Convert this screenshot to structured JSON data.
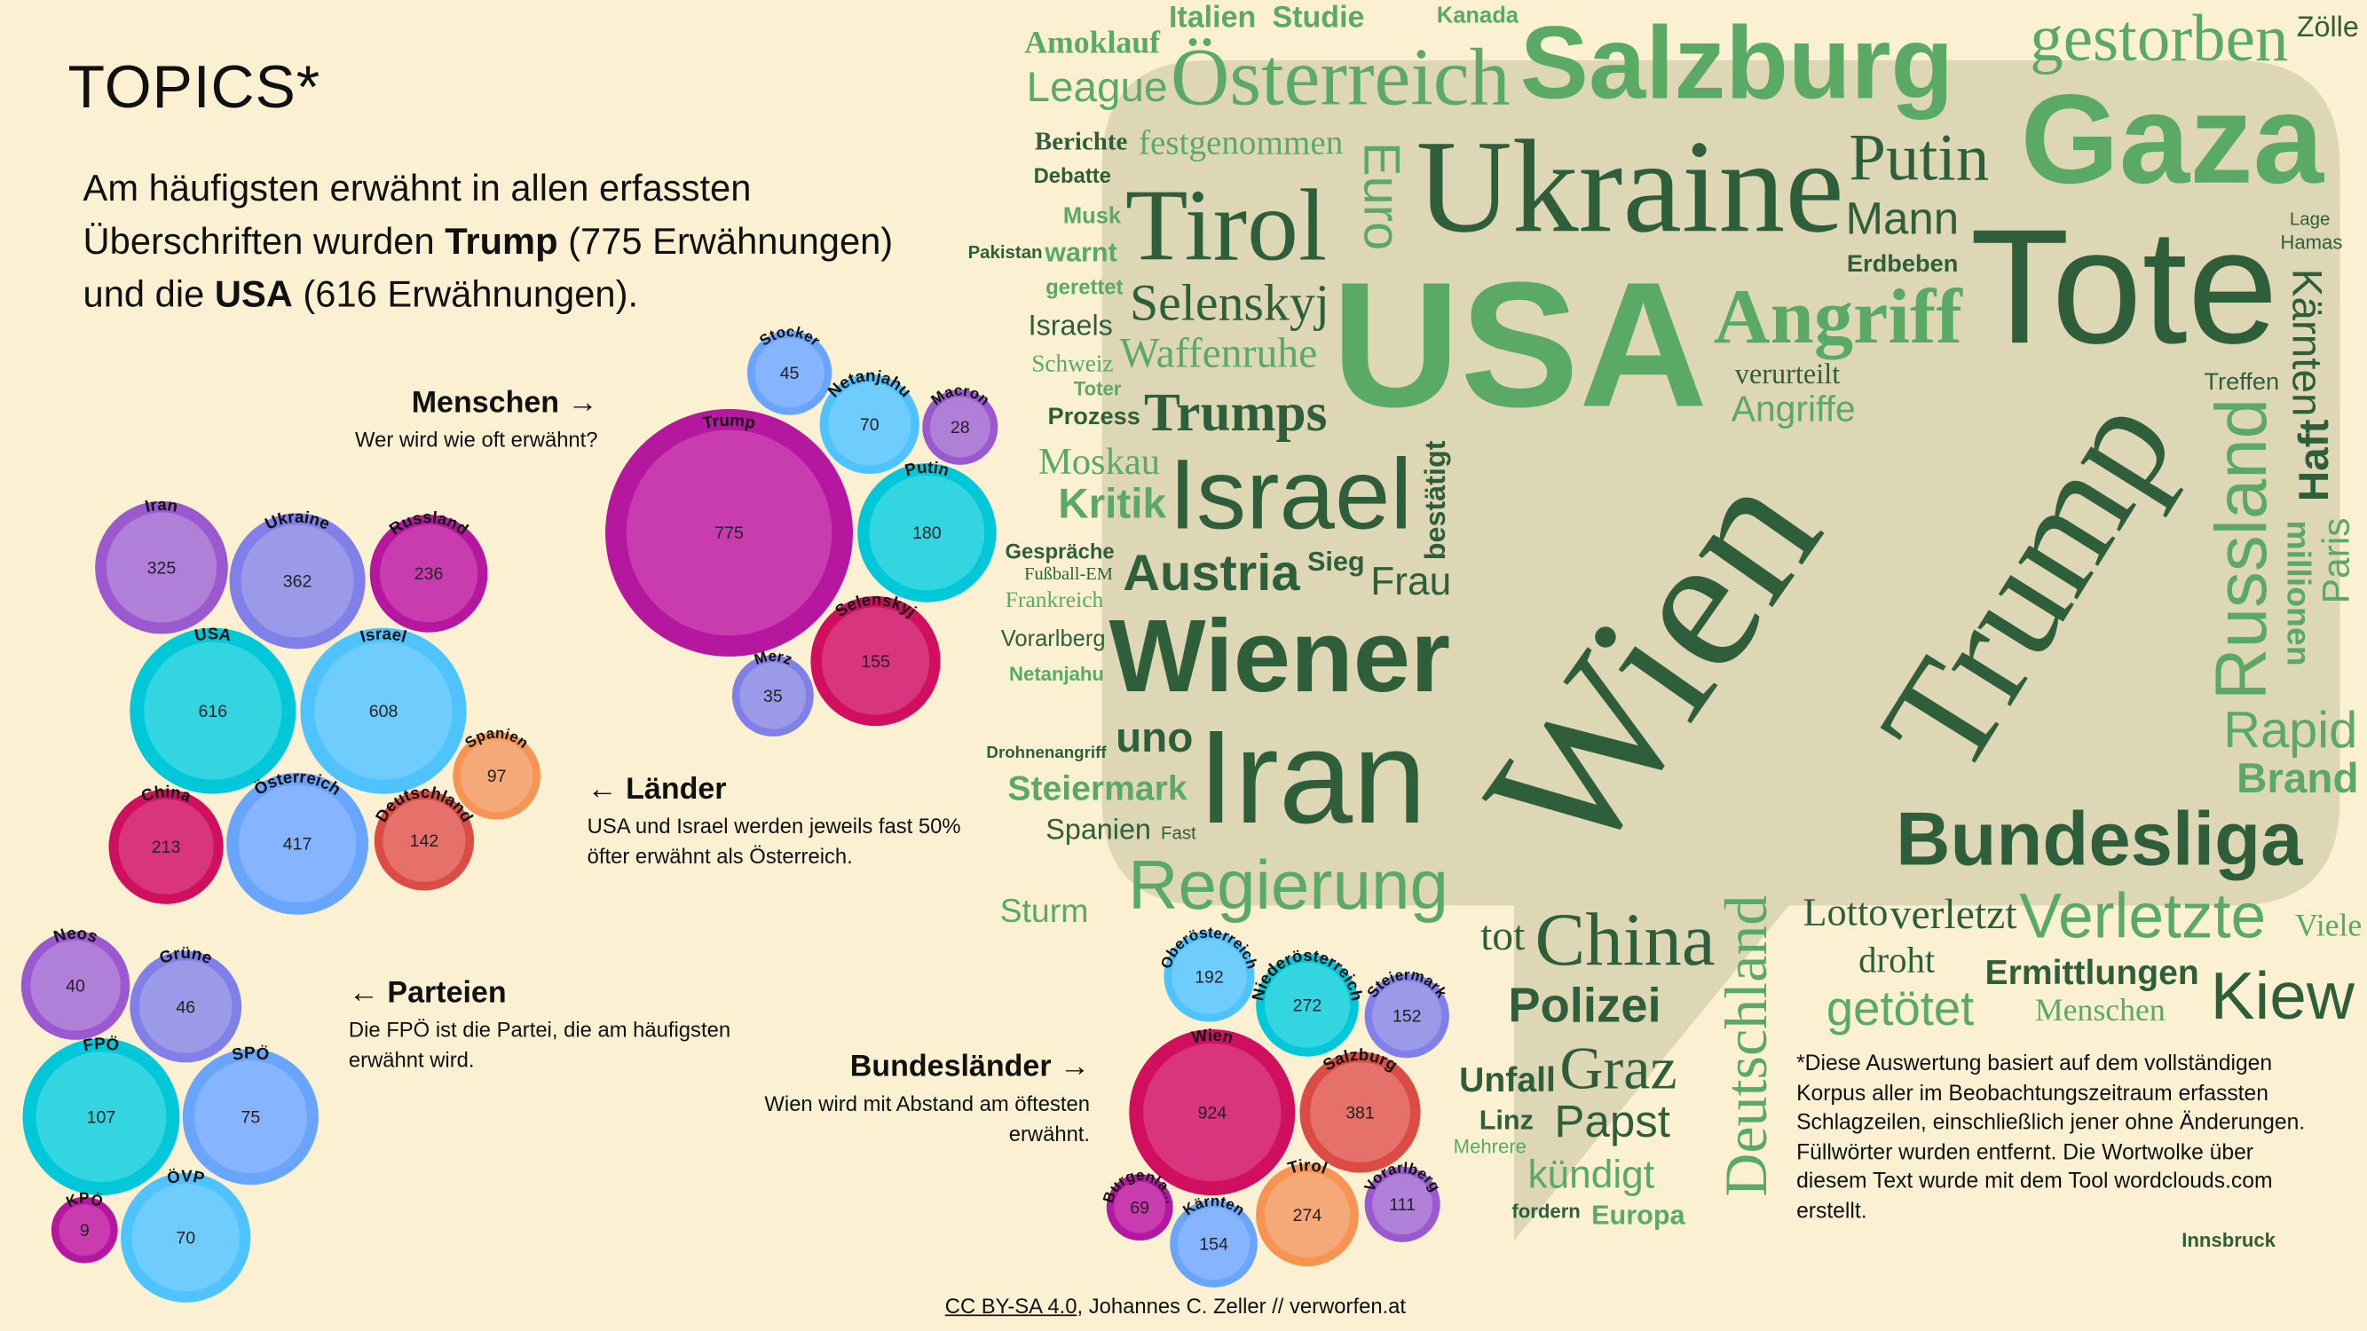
{
  "header": {
    "title": "TOPICS*",
    "intro": {
      "line1": "Am häufigsten erwähnt in allen erfassten",
      "line2_pre": "Überschriften wurden ",
      "trump": "Trump",
      "line2_post": " (775 Erwähnungen)",
      "line3_pre": "und die ",
      "usa": "USA",
      "line3_post": " (616 Erwähnungen)."
    }
  },
  "colors": {
    "background": "#fbf1d2",
    "cloud_fill": "#ddd7b6",
    "word_dark": "#2f5f3a",
    "word_light": "#5aaa66",
    "purple": [
      "#9b59d0",
      "#b07fd8"
    ],
    "periwinkle": [
      "#8080e8",
      "#9a9ae8"
    ],
    "magenta": [
      "#b5179e",
      "#c93cb0"
    ],
    "cyan": [
      "#00c8d8",
      "#33d5e0"
    ],
    "lightblue": [
      "#4ec3ff",
      "#6ecdfc"
    ],
    "blue": [
      "#69a5ff",
      "#86b4ff"
    ],
    "crimson": [
      "#d0105e",
      "#d8357e"
    ],
    "red": [
      "#dd4b45",
      "#e5716a"
    ],
    "orange": [
      "#f59453",
      "#f5a878"
    ]
  },
  "menschen": {
    "title": "Menschen",
    "arrow_icon": "arrow-right-icon",
    "subtitle": "Wer wird wie oft erwähnt?",
    "items": [
      {
        "label": "Trump",
        "value": 775,
        "color": "magenta"
      },
      {
        "label": "Stocker",
        "value": 45,
        "color": "blue"
      },
      {
        "label": "Netanjahu",
        "value": 70,
        "color": "lightblue"
      },
      {
        "label": "Macron",
        "value": 28,
        "color": "purple"
      },
      {
        "label": "Putin",
        "value": 180,
        "color": "cyan"
      },
      {
        "label": "Selenskyj",
        "value": 155,
        "color": "crimson"
      },
      {
        "label": "Merz",
        "value": 35,
        "color": "periwinkle"
      }
    ]
  },
  "laender": {
    "title": "Länder",
    "arrow_icon": "arrow-left-icon",
    "lines": [
      "USA und Israel werden jeweils fast 50%",
      "öfter erwähnt als Österreich."
    ],
    "items": [
      {
        "label": "Iran",
        "value": 325,
        "color": "purple"
      },
      {
        "label": "Ukraine",
        "value": 362,
        "color": "periwinkle"
      },
      {
        "label": "Russland",
        "value": 236,
        "color": "magenta"
      },
      {
        "label": "USA",
        "value": 616,
        "color": "cyan"
      },
      {
        "label": "Israel",
        "value": 608,
        "color": "lightblue"
      },
      {
        "label": "Spanien",
        "value": 97,
        "color": "orange"
      },
      {
        "label": "China",
        "value": 213,
        "color": "crimson"
      },
      {
        "label": "Österreich",
        "value": 417,
        "color": "blue"
      },
      {
        "label": "Deutschland",
        "value": 142,
        "color": "red"
      }
    ]
  },
  "parteien": {
    "title": "Parteien",
    "arrow_icon": "arrow-left-icon",
    "lines": [
      "Die FPÖ ist die Partei, die am häufigsten",
      "erwähnt wird."
    ],
    "items": [
      {
        "label": "Neos",
        "value": 40,
        "color": "purple"
      },
      {
        "label": "Grüne",
        "value": 46,
        "color": "periwinkle"
      },
      {
        "label": "FPÖ",
        "value": 107,
        "color": "cyan"
      },
      {
        "label": "SPÖ",
        "value": 75,
        "color": "blue"
      },
      {
        "label": "ÖVP",
        "value": 70,
        "color": "lightblue"
      },
      {
        "label": "KPÖ",
        "value": 9,
        "color": "magenta"
      }
    ]
  },
  "bundeslaender": {
    "title": "Bundesländer",
    "arrow_icon": "arrow-right-icon",
    "lines": [
      "Wien wird mit Abstand am öftesten",
      "erwähnt."
    ],
    "items": [
      {
        "label": "Oberösterreich",
        "value": 192,
        "color": "lightblue"
      },
      {
        "label": "Niederösterreich",
        "value": 272,
        "color": "cyan"
      },
      {
        "label": "Steiermark",
        "value": 152,
        "color": "periwinkle"
      },
      {
        "label": "Wien",
        "value": 924,
        "color": "crimson"
      },
      {
        "label": "Salzburg",
        "value": 381,
        "color": "red"
      },
      {
        "label": "Burgenla...",
        "value": 69,
        "color": "magenta"
      },
      {
        "label": "Kärnten",
        "value": 154,
        "color": "blue"
      },
      {
        "label": "Tirol",
        "value": 274,
        "color": "orange"
      },
      {
        "label": "Vorarlberg",
        "value": 111,
        "color": "purple"
      }
    ]
  },
  "wordcloud": {
    "words": [
      "Angriff",
      "Österreich",
      "Trumps",
      "League",
      "Berichte",
      "Amoklauf",
      "gestorben",
      "Bundesliga",
      "Tirol",
      "Ukraine",
      "Mann",
      "uno",
      "Gaza",
      "Selenskyj",
      "Israel",
      "Salzburg",
      "Waffenruhe",
      "Kiew",
      "Moskau",
      "Rapid",
      "USA",
      "Kritik",
      "Putin",
      "Austria",
      "Wiener",
      "Iran",
      "Steiermark",
      "Regierung",
      "Wien",
      "Trump",
      "Russland",
      "Deutschland",
      "Tote",
      "Verletzte",
      "China",
      "getötet",
      "Ermittlungen",
      "Brand",
      "Angriffe",
      "Graz",
      "Polizei",
      "Papst",
      "kündigt",
      "Unfall",
      "festgenommen",
      "verletzt",
      "Lotto",
      "tot",
      "Europa",
      "Kärnten",
      "bestätigt",
      "Frau",
      "millionen",
      "Haft",
      "Spanien",
      "Sturm",
      "Linz",
      "droht",
      "Italien",
      "Studie",
      "warnt",
      "Zölle",
      "Debatte",
      "gerettet",
      "Erdbeben",
      "verurteilt",
      "Israels",
      "Prozess",
      "Innsbruck",
      "Hamas",
      "Netanjahu",
      "Gespräche",
      "Frankreich",
      "Drohnenangriff",
      "Vorarlberg",
      "Fußball-EM",
      "Fast",
      "Lage",
      "Pakistan",
      "Viele",
      "Treffen",
      "Schweiz",
      "Menschen",
      "Sieg",
      "Musk",
      "Kanada",
      "Euro",
      "Paris",
      "Toter",
      "Mehrere",
      "fordern"
    ]
  },
  "footnote": {
    "lines": [
      "*Diese Auswertung basiert auf dem vollständigen",
      "Korpus aller im Beobachtungszeitraum erfassten",
      "Schlagzeilen, einschließlich jener ohne Änderungen.",
      "Füllwörter wurden entfernt. Die Wortwolke über",
      "diesem Text wurde mit dem Tool wordclouds.com",
      "erstellt."
    ]
  },
  "credit": {
    "license": "CC BY-SA 4.0",
    "rest": ", Johannes C. Zeller // verworfen.at"
  }
}
